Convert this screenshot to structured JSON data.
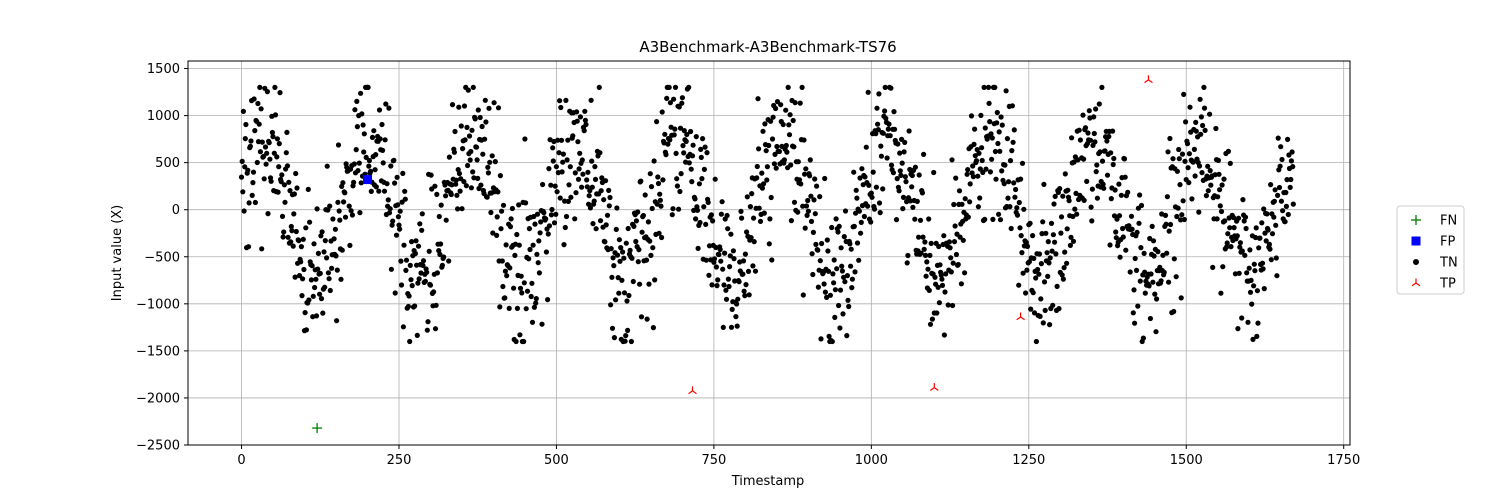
{
  "chart_data": {
    "type": "scatter",
    "title": "A3Benchmark-A3Benchmark-TS76",
    "xlabel": "Timestamp",
    "ylabel": "Input value (X)",
    "xlim": [
      -85,
      1760
    ],
    "ylim": [
      -2500,
      1580
    ],
    "xticks": [
      0,
      250,
      500,
      750,
      1000,
      1250,
      1500,
      1750
    ],
    "yticks": [
      -2500,
      -2000,
      -1500,
      -1000,
      -500,
      0,
      500,
      1000,
      1500
    ],
    "grid": true,
    "legend_position": "right",
    "tn_series": {
      "name": "TN",
      "color": "#000000",
      "marker": "dot",
      "x_range": [
        0,
        1670
      ],
      "period": 165,
      "amplitude": 700,
      "noise": 380,
      "note_values": "dense noisy sinusoid of normal points, values roughly between -1400 and 1300"
    },
    "series": [
      {
        "name": "FN",
        "color": "#008000",
        "marker": "plus",
        "points": [
          [
            120,
            -2320
          ]
        ]
      },
      {
        "name": "FP",
        "color": "#0000ff",
        "marker": "square",
        "points": [
          [
            200,
            320
          ]
        ]
      },
      {
        "name": "TN",
        "color": "#000000",
        "marker": "dot",
        "points": []
      },
      {
        "name": "TP",
        "color": "#ff0000",
        "marker": "tri_down",
        "points": [
          [
            716,
            -1925
          ],
          [
            1100,
            -1890
          ],
          [
            1237,
            -1140
          ],
          [
            1440,
            1380
          ]
        ]
      }
    ]
  }
}
